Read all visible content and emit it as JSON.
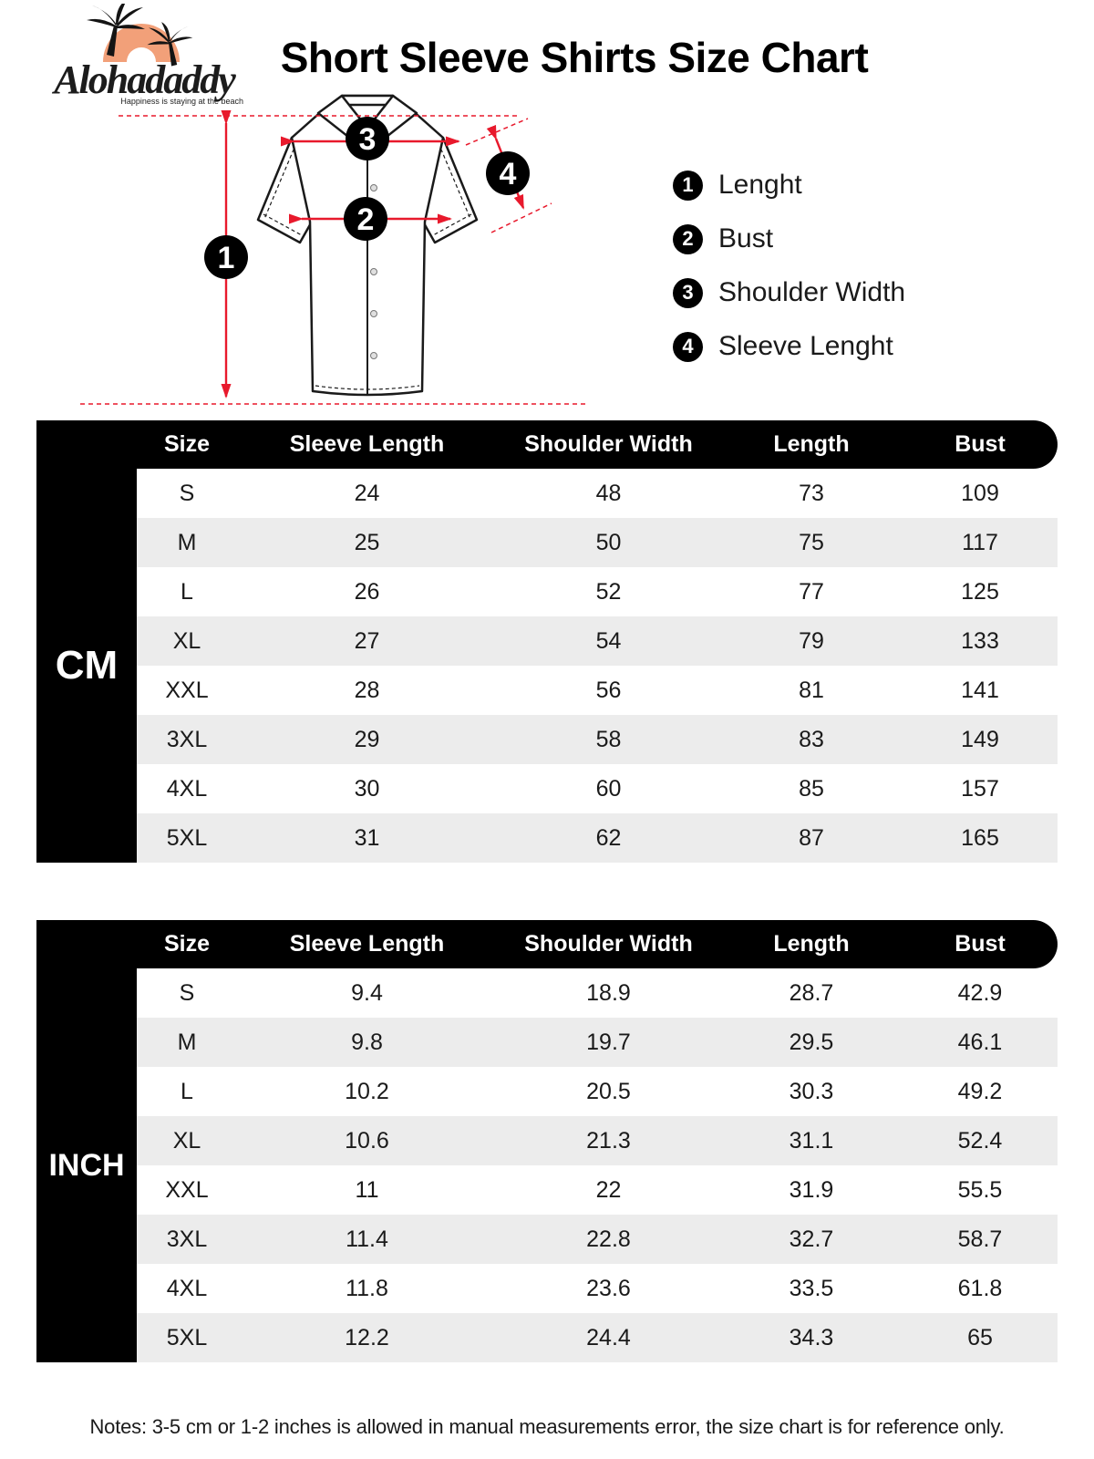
{
  "brand": {
    "name": "Alohadaddy",
    "tagline": "Happiness is staying at the beach"
  },
  "title": "Short Sleeve Shirts Size Chart",
  "legend": [
    {
      "num": "1",
      "label": "Lenght"
    },
    {
      "num": "2",
      "label": "Bust"
    },
    {
      "num": "3",
      "label": "Shoulder Width"
    },
    {
      "num": "4",
      "label": "Sleeve Lenght"
    }
  ],
  "diagram": {
    "markers": [
      "1",
      "2",
      "3",
      "4"
    ]
  },
  "tables": [
    {
      "unit_label": "CM",
      "columns": [
        "Size",
        "Sleeve Length",
        "Shoulder Width",
        "Length",
        "Bust"
      ],
      "rows": [
        [
          "S",
          "24",
          "48",
          "73",
          "109"
        ],
        [
          "M",
          "25",
          "50",
          "75",
          "117"
        ],
        [
          "L",
          "26",
          "52",
          "77",
          "125"
        ],
        [
          "XL",
          "27",
          "54",
          "79",
          "133"
        ],
        [
          "XXL",
          "28",
          "56",
          "81",
          "141"
        ],
        [
          "3XL",
          "29",
          "58",
          "83",
          "149"
        ],
        [
          "4XL",
          "30",
          "60",
          "85",
          "157"
        ],
        [
          "5XL",
          "31",
          "62",
          "87",
          "165"
        ]
      ]
    },
    {
      "unit_label": "INCH",
      "columns": [
        "Size",
        "Sleeve Length",
        "Shoulder Width",
        "Length",
        "Bust"
      ],
      "rows": [
        [
          "S",
          "9.4",
          "18.9",
          "28.7",
          "42.9"
        ],
        [
          "M",
          "9.8",
          "19.7",
          "29.5",
          "46.1"
        ],
        [
          "L",
          "10.2",
          "20.5",
          "30.3",
          "49.2"
        ],
        [
          "XL",
          "10.6",
          "21.3",
          "31.1",
          "52.4"
        ],
        [
          "XXL",
          "11",
          "22",
          "31.9",
          "55.5"
        ],
        [
          "3XL",
          "11.4",
          "22.8",
          "32.7",
          "58.7"
        ],
        [
          "4XL",
          "11.8",
          "23.6",
          "33.5",
          "61.8"
        ],
        [
          "5XL",
          "12.2",
          "24.4",
          "34.3",
          "65"
        ]
      ]
    }
  ],
  "note": "Notes: 3-5 cm or 1-2 inches is allowed in manual measurements error, the size chart is for reference only.",
  "colors": {
    "accent_red": "#e8192c",
    "logo_orange": "#f2a079",
    "row_alt": "#ececec",
    "bar_black": "#000000"
  }
}
